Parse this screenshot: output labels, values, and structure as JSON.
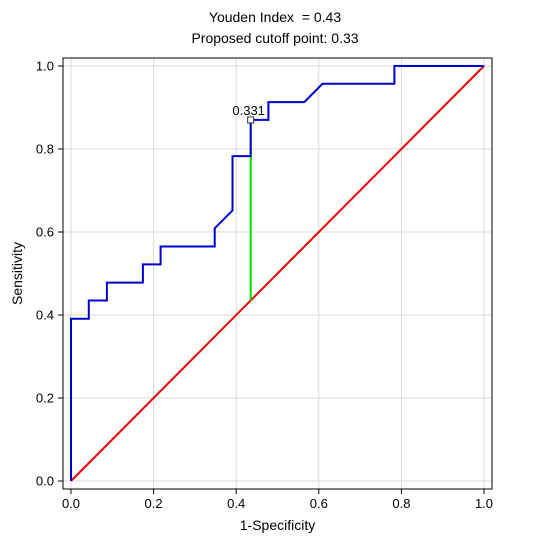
{
  "chart_data": {
    "type": "line",
    "title_lines": [
      "Youden Index  = 0.43",
      "Proposed cutoff point: 0.33"
    ],
    "xlabel": "1-Specificity",
    "ylabel": "Sensitivity",
    "xlim": [
      0,
      1
    ],
    "ylim": [
      0,
      1
    ],
    "xticks": [
      "0.0",
      "0.2",
      "0.4",
      "0.6",
      "0.8",
      "1.0"
    ],
    "yticks": [
      "0.0",
      "0.2",
      "0.4",
      "0.6",
      "0.8",
      "1.0"
    ],
    "grid": true,
    "series": [
      {
        "kind": "roc-curve",
        "color": "#0000cc",
        "points": [
          [
            0,
            0
          ],
          [
            0,
            0.391
          ],
          [
            0.043,
            0.391
          ],
          [
            0.043,
            0.435
          ],
          [
            0.087,
            0.435
          ],
          [
            0.087,
            0.478
          ],
          [
            0.174,
            0.478
          ],
          [
            0.174,
            0.522
          ],
          [
            0.217,
            0.522
          ],
          [
            0.217,
            0.565
          ],
          [
            0.348,
            0.565
          ],
          [
            0.348,
            0.609
          ],
          [
            0.391,
            0.652
          ],
          [
            0.391,
            0.783
          ],
          [
            0.435,
            0.783
          ],
          [
            0.435,
            0.87
          ],
          [
            0.478,
            0.87
          ],
          [
            0.478,
            0.913
          ],
          [
            0.565,
            0.913
          ],
          [
            0.609,
            0.957
          ],
          [
            0.783,
            0.957
          ],
          [
            0.783,
            1.0
          ],
          [
            1.0,
            1.0
          ]
        ]
      },
      {
        "kind": "reference-diagonal",
        "color": "#ee0000",
        "points": [
          [
            0,
            0
          ],
          [
            1,
            1
          ]
        ]
      },
      {
        "kind": "youden-segment",
        "color": "#00dd00",
        "points": [
          [
            0.435,
            0.435
          ],
          [
            0.435,
            0.87
          ]
        ]
      }
    ],
    "cutoff_marker": {
      "x": 0.435,
      "y": 0.87,
      "label": "0.331"
    }
  }
}
